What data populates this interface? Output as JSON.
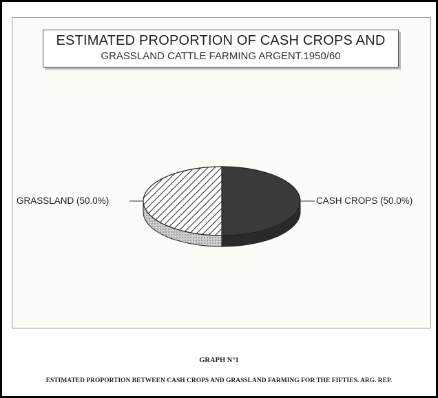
{
  "chart_data": {
    "type": "pie",
    "title": "ESTIMATED PROPORTION OF CASH CROPS AND",
    "subtitle": "GRASSLAND CATTLE FARMING ARGENT.1950/60",
    "slices": [
      {
        "label": "CASH CROPS (50.0%)",
        "value": 50.0,
        "fill": "solid-dark"
      },
      {
        "label": "GRASSLAND (50.0%)",
        "value": 50.0,
        "fill": "diagonal-hatch"
      }
    ],
    "colors": {
      "dark": "#3a3a3a",
      "hatch": "#333333",
      "background": "#fbfbf8"
    }
  },
  "caption": {
    "heading": "GRAPH N°1",
    "text": "ESTIMATED PROPORTION BETWEEN CASH CROPS AND GRASSLAND FARMING FOR THE FIFTIES. ARG. REP."
  }
}
